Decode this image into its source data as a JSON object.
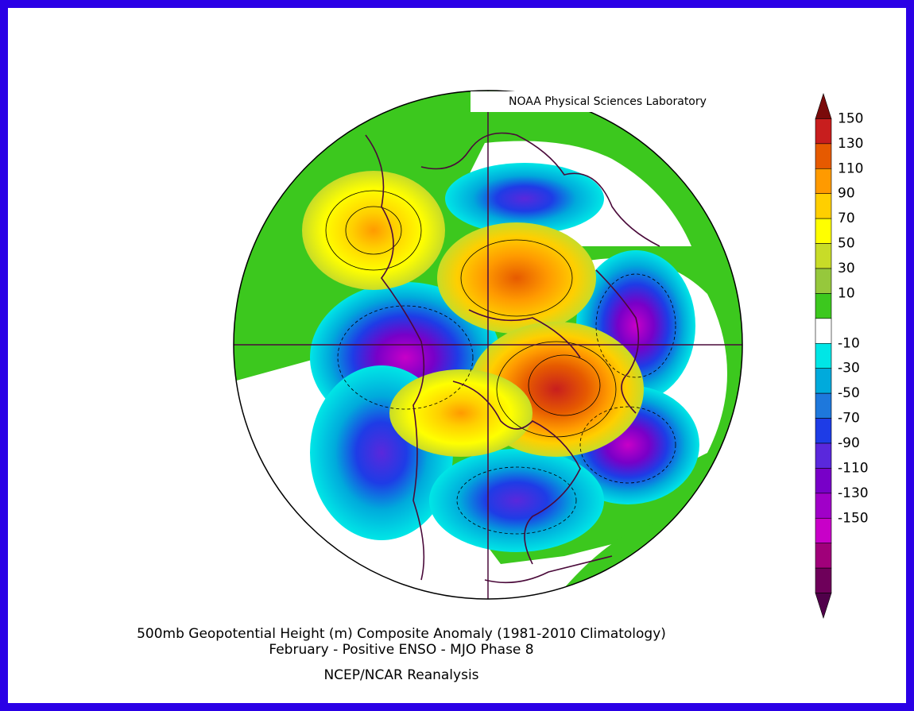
{
  "credit": "NOAA Physical Sciences Laboratory",
  "title": {
    "line1": "500mb Geopotential Height (m) Composite Anomaly (1981-2010 Climatology)",
    "line2": "February - Positive ENSO - MJO Phase 8",
    "line3": "NCEP/NCAR Reanalysis"
  },
  "colorbar": {
    "tick_labels": [
      "150",
      "130",
      "110",
      "90",
      "70",
      "50",
      "30",
      "10",
      "-10",
      "-30",
      "-50",
      "-70",
      "-90",
      "-110",
      "-130",
      "-150"
    ],
    "colors": [
      "#7a0a0a",
      "#c81e1e",
      "#e65a00",
      "#ff9a00",
      "#ffcf00",
      "#ffff00",
      "#c8dc28",
      "#96c83c",
      "#3cc81e",
      "#ffffff",
      "#00e6e6",
      "#00aadc",
      "#1e78dc",
      "#1e3ce6",
      "#5a28dc",
      "#7800c8",
      "#a000c8",
      "#c800c8",
      "#a0007a",
      "#6e005a",
      "#50004a"
    ]
  },
  "chart_data": {
    "type": "contour map",
    "variable": "500mb Geopotential Height (m) Composite Anomaly",
    "units": "m",
    "levels": [
      -150,
      -130,
      -110,
      -90,
      -70,
      -50,
      -30,
      -10,
      10,
      30,
      50,
      70,
      90,
      110,
      130,
      150
    ]
  }
}
